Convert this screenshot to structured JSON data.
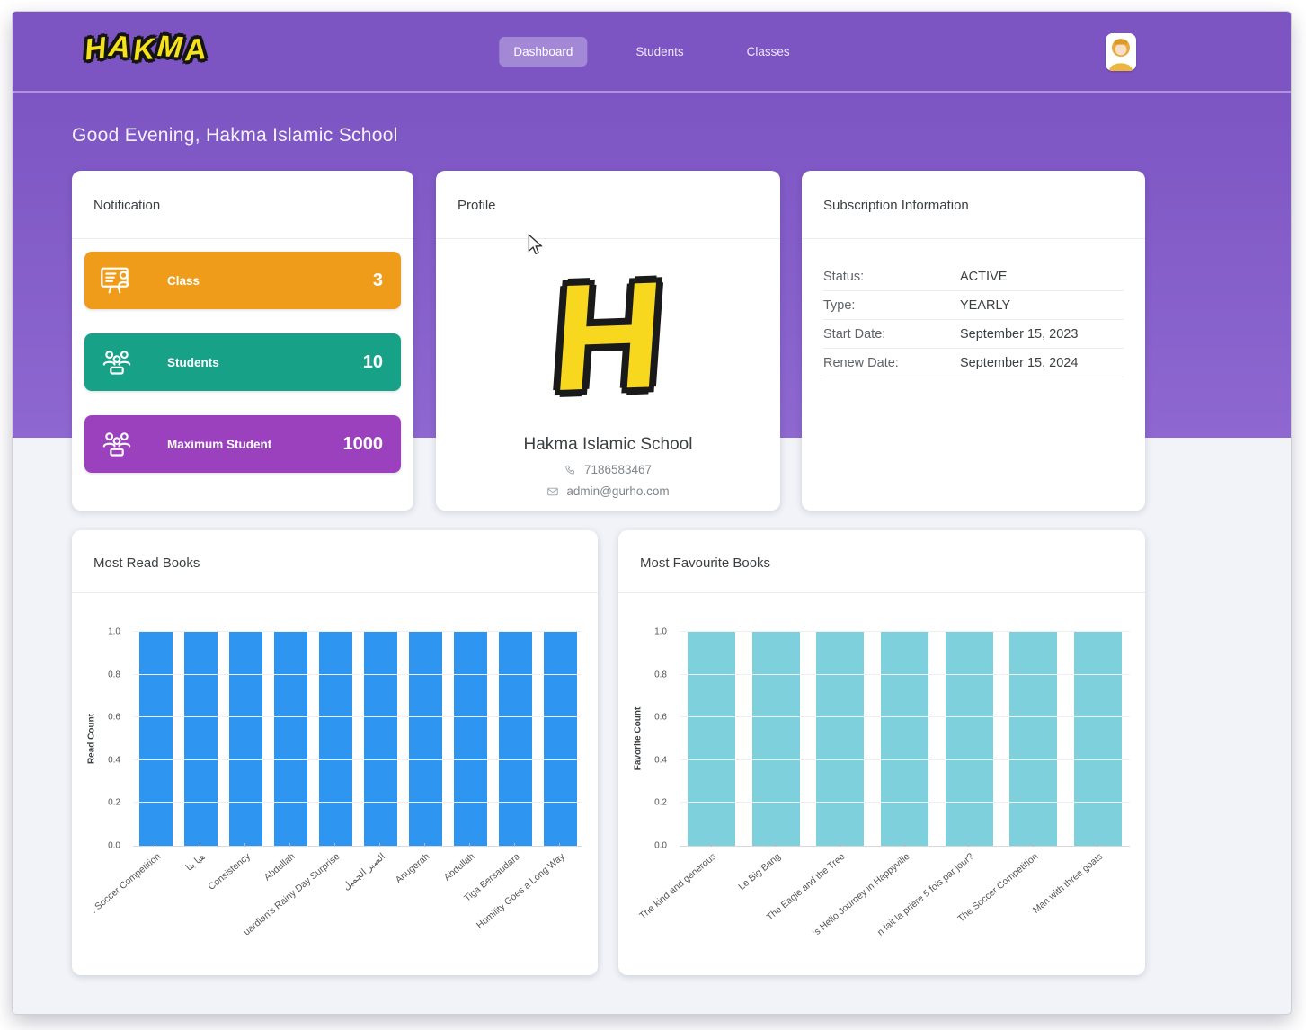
{
  "colors": {
    "nav_purple": "#7C55C3",
    "hero_purple_bottom": "#8E68D0",
    "page_bg": "#F1F3F8",
    "logo_yellow": "#F5E11C",
    "stat_orange": "#F09C1B",
    "stat_green": "#17A287",
    "stat_purple": "#9C41BE",
    "read_bar_blue": "#2E96F0",
    "fav_bar_cyan": "#7ED0DC"
  },
  "nav": {
    "logo": "HAKMA",
    "items": [
      {
        "label": "Dashboard",
        "active": true
      },
      {
        "label": "Students",
        "active": false
      },
      {
        "label": "Classes",
        "active": false
      }
    ]
  },
  "greeting": "Good Evening, Hakma Islamic School",
  "notification": {
    "title": "Notification",
    "stats": [
      {
        "label": "Class",
        "value": "3",
        "color": "#F09C1B",
        "icon": "class-board-icon"
      },
      {
        "label": "Students",
        "value": "10",
        "color": "#17A287",
        "icon": "students-icon"
      },
      {
        "label": "Maximum Student",
        "value": "1000",
        "color": "#9C41BE",
        "icon": "students-icon"
      }
    ]
  },
  "profile": {
    "title": "Profile",
    "logo_letter": "H",
    "name": "Hakma Islamic School",
    "phone": "7186583467",
    "email": "admin@gurho.com"
  },
  "subscription": {
    "title": "Subscription Information",
    "rows": [
      {
        "label": "Status:",
        "value": "ACTIVE"
      },
      {
        "label": "Type:",
        "value": "YEARLY"
      },
      {
        "label": "Start Date:",
        "value": "September 15, 2023"
      },
      {
        "label": "Renew Date:",
        "value": "September 15, 2024"
      }
    ]
  },
  "chart_data": [
    {
      "type": "bar",
      "title": "Most Read Books",
      "ylabel": "Read Count",
      "xlabel": "",
      "ylim": [
        0,
        1
      ],
      "yticks": [
        0.0,
        0.2,
        0.4,
        0.6,
        0.8,
        1.0
      ],
      "grid": true,
      "legend": "none",
      "bar_color": "#2E96F0",
      "categories": [
        ". Soccer Competition",
        "هيا بنا",
        "Consistency",
        "Abdullah",
        "uardian's Rainy Day Surprise",
        "الصبر الجميل",
        "Anugerah",
        "Abdullah",
        "Tiga Bersaudara",
        "Humility Goes a Long Way"
      ],
      "values": [
        1.0,
        1.0,
        1.0,
        1.0,
        1.0,
        1.0,
        1.0,
        1.0,
        1.0,
        1.0
      ]
    },
    {
      "type": "bar",
      "title": "Most Favourite Books",
      "ylabel": "Favorite Count",
      "xlabel": "",
      "ylim": [
        0,
        1
      ],
      "yticks": [
        0.0,
        0.2,
        0.4,
        0.6,
        0.8,
        1.0
      ],
      "grid": true,
      "legend": "none",
      "bar_color": "#7ED0DC",
      "categories": [
        "The kind and generous",
        "Le Big Bang",
        "The Eagle and the Tree",
        "'s Hello Journey in Happyville",
        "n fait la prière 5 fois par jour?",
        "The Soccer Competition",
        "Man with three goats"
      ],
      "values": [
        1.0,
        1.0,
        1.0,
        1.0,
        1.0,
        1.0,
        1.0
      ]
    }
  ]
}
